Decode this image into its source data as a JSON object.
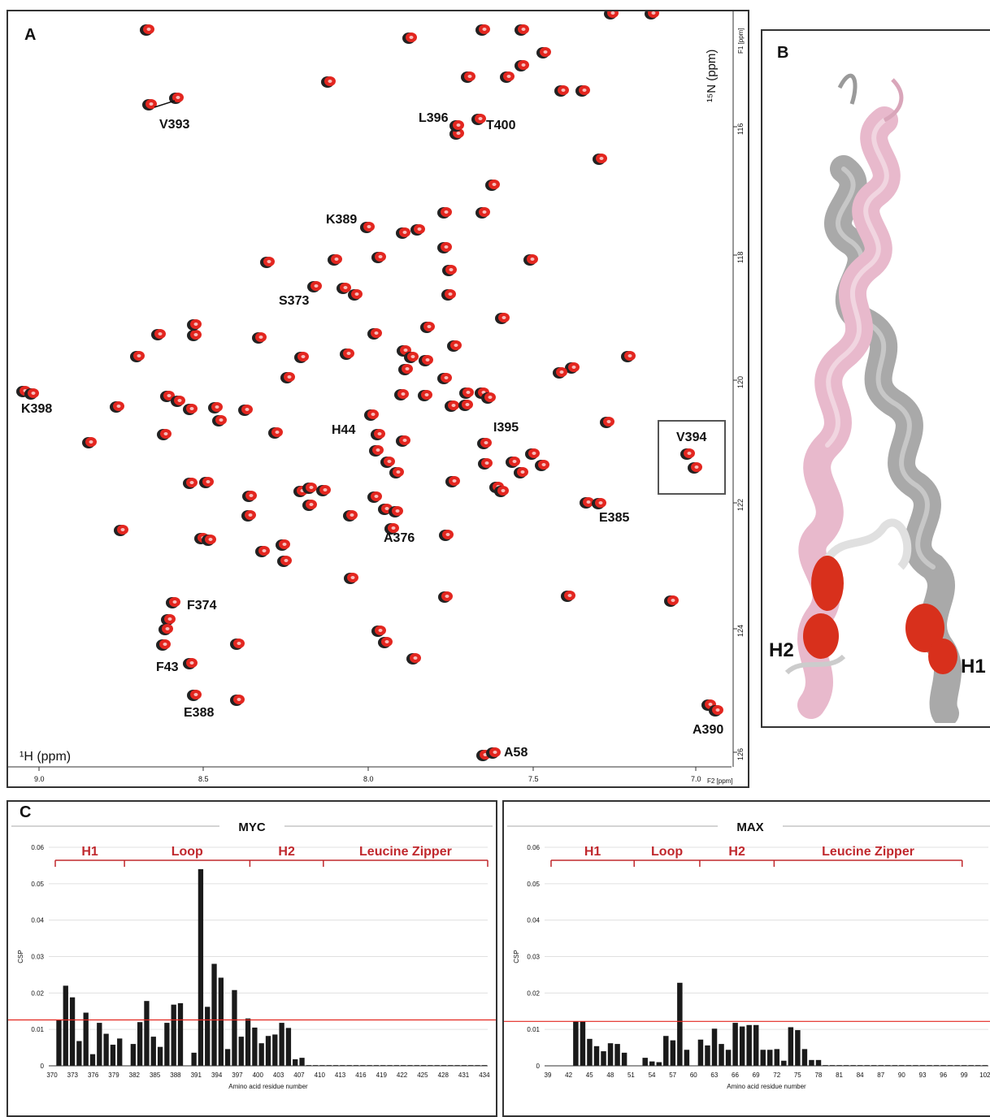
{
  "panel_a": {
    "label": "A",
    "axis_x_title": "¹H (ppm)",
    "axis_x_corner": "F2 [ppm]",
    "axis_y_title": "¹⁵N (ppm)",
    "axis_y_corner": "F1 [ppm]",
    "x_ticks": [
      "9.0",
      "8.5",
      "8.0",
      "7.5",
      "7.0"
    ],
    "y_ticks": [
      "116",
      "118",
      "120",
      "122",
      "124",
      "126"
    ],
    "peak_labels": [
      "V393",
      "L396",
      "T400",
      "K389",
      "S373",
      "K398",
      "H44",
      "I395",
      "V394",
      "E385",
      "A376",
      "F374",
      "F43",
      "E388",
      "A58",
      "A390"
    ],
    "colors": {
      "free": "#222222",
      "bound": "#e3261f"
    }
  },
  "panel_b": {
    "label": "B",
    "helix_labels": [
      "H2",
      "H1"
    ],
    "colors": {
      "chain1": "#e8b9cc",
      "chain2": "#a9a9a9",
      "highlight": "#d8301c"
    }
  },
  "panel_c": {
    "label": "C",
    "x_axis_title": "Amino acid residue number",
    "y_axis_title": "CSP",
    "threshold_color": "#e3261f",
    "bar_color": "#1a1a1a"
  },
  "chart_data": [
    {
      "type": "bar",
      "title": "MYC",
      "xlabel": "Amino acid residue number",
      "ylabel": "CSP",
      "ylim": [
        0,
        0.06
      ],
      "y_ticks": [
        "0",
        "0.01",
        "0.02",
        "0.03",
        "0.04",
        "0.05",
        "0.06"
      ],
      "x_tick_labels": [
        "370",
        "373",
        "376",
        "379",
        "382",
        "385",
        "388",
        "391",
        "394",
        "397",
        "400",
        "403",
        "407",
        "410",
        "413",
        "416",
        "419",
        "422",
        "425",
        "428",
        "431",
        "434"
      ],
      "regions": [
        "H1",
        "Loop",
        "H2",
        "Leucine Zipper"
      ],
      "threshold": 0.0126,
      "categories": [
        370,
        371,
        372,
        373,
        374,
        375,
        376,
        377,
        378,
        379,
        380,
        381,
        382,
        383,
        384,
        385,
        386,
        387,
        388,
        389,
        390,
        391,
        392,
        393,
        394,
        395,
        396,
        397,
        398,
        399,
        400,
        401,
        402,
        403,
        404,
        405,
        406,
        407,
        408,
        409,
        410,
        411,
        412,
        413,
        414,
        415,
        416,
        417,
        418,
        419,
        420,
        421,
        422,
        423,
        424,
        425,
        426,
        427,
        428,
        429,
        430,
        431,
        432,
        433,
        434
      ],
      "values": [
        0,
        0.0125,
        0.022,
        0.0188,
        0.0068,
        0.0146,
        0.0032,
        0.0118,
        0.0088,
        0.0058,
        0.0075,
        0,
        0.006,
        0.012,
        0.0178,
        0.008,
        0.0052,
        0.0118,
        0.0168,
        0.0172,
        0,
        0.0036,
        0.054,
        0.0162,
        0.028,
        0.0242,
        0.0046,
        0.0208,
        0.008,
        0.013,
        0.0105,
        0.0062,
        0.0082,
        0.0086,
        0.0118,
        0.0104,
        0.0018,
        0.0022,
        0.0002,
        0.0002,
        0.0002,
        0.0002,
        0.0002,
        0.0002,
        0.0002,
        0.0002,
        0.0002,
        0.0002,
        0.0002,
        0.0002,
        0.0002,
        0.0002,
        0.0002,
        0.0002,
        0.0002,
        0.0002,
        0.0002,
        0.0002,
        0.0002,
        0.0002,
        0.0002,
        0.0002,
        0.0002,
        0.0002,
        0.0002
      ]
    },
    {
      "type": "bar",
      "title": "MAX",
      "xlabel": "Amino acid residue number",
      "ylabel": "CSP",
      "ylim": [
        0,
        0.06
      ],
      "y_ticks": [
        "0",
        "0.01",
        "0.02",
        "0.03",
        "0.04",
        "0.05",
        "0.06"
      ],
      "x_tick_labels": [
        "39",
        "42",
        "45",
        "48",
        "51",
        "54",
        "57",
        "60",
        "63",
        "66",
        "69",
        "72",
        "75",
        "78",
        "81",
        "84",
        "87",
        "90",
        "93",
        "96",
        "99",
        "102"
      ],
      "regions": [
        "H1",
        "Loop",
        "H2",
        "Leucine Zipper"
      ],
      "threshold": 0.0122,
      "categories": [
        39,
        40,
        41,
        42,
        43,
        44,
        45,
        46,
        47,
        48,
        49,
        50,
        51,
        52,
        53,
        54,
        55,
        56,
        57,
        58,
        59,
        60,
        61,
        62,
        63,
        64,
        65,
        66,
        67,
        68,
        69,
        70,
        71,
        72,
        73,
        74,
        75,
        76,
        77,
        78,
        79,
        80,
        81,
        82,
        83,
        84,
        85,
        86,
        87,
        88,
        89,
        90,
        91,
        92,
        93,
        94,
        95,
        96,
        97,
        98,
        99,
        100,
        101,
        102
      ],
      "values": [
        0,
        0,
        0,
        0,
        0.0122,
        0.0122,
        0.0074,
        0.0054,
        0.004,
        0.0062,
        0.006,
        0.0036,
        0,
        0,
        0.0022,
        0.0012,
        0.001,
        0.0082,
        0.007,
        0.0228,
        0.0044,
        0,
        0.0072,
        0.0056,
        0.0102,
        0.006,
        0.0044,
        0.0118,
        0.0108,
        0.0112,
        0.0112,
        0.0044,
        0.0044,
        0.0046,
        0.0014,
        0.0106,
        0.0098,
        0.0046,
        0.0016,
        0.0016,
        0.0002,
        0.0002,
        0.0002,
        0.0002,
        0.0002,
        0.0002,
        0.0002,
        0.0002,
        0.0002,
        0.0002,
        0.0002,
        0.0002,
        0.0002,
        0.0002,
        0.0002,
        0.0002,
        0.0002,
        0.0002,
        0.0002,
        0.0002,
        0.0002,
        0.0002,
        0.0002,
        0.0002
      ]
    }
  ]
}
